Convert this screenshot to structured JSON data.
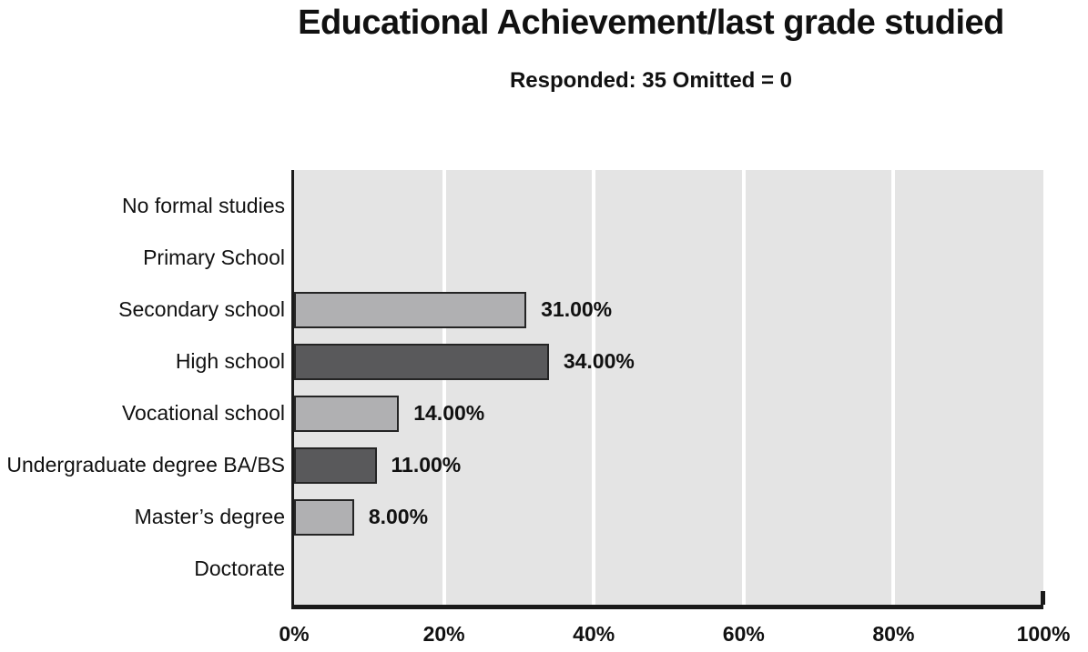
{
  "page": {
    "background": "#ffffff"
  },
  "header": {
    "title": "Educational Achievement/last grade studied",
    "subtitle": "Responded: 35 Omitted = 0"
  },
  "chart_data": {
    "type": "bar",
    "orientation": "horizontal",
    "title": "Educational Achievement/last grade studied",
    "subtitle": "Responded: 35 Omitted = 0",
    "responded": 35,
    "omitted": 0,
    "xlabel": "",
    "ylabel": "",
    "xlim": [
      0,
      100
    ],
    "x_ticks": [
      "0%",
      "20%",
      "40%",
      "60%",
      "80%",
      "100%"
    ],
    "grid": "vertical white gridlines every 20%",
    "legend": "none",
    "categories": [
      "No formal studies",
      "Primary School",
      "Secondary school",
      "High school",
      "Vocational school",
      "Undergraduate degree BA/BS",
      "Master’s degree",
      "Doctorate"
    ],
    "values": [
      0,
      0,
      31,
      34,
      14,
      11,
      8,
      0
    ],
    "items": [
      {
        "label": "No formal studies",
        "value": 0,
        "value_label": "",
        "shade": null
      },
      {
        "label": "Primary School",
        "value": 0,
        "value_label": "",
        "shade": null
      },
      {
        "label": "Secondary school",
        "value": 31,
        "value_label": "31.00%",
        "shade": "light"
      },
      {
        "label": "High school",
        "value": 34,
        "value_label": "34.00%",
        "shade": "dark"
      },
      {
        "label": "Vocational school",
        "value": 14,
        "value_label": "14.00%",
        "shade": "light"
      },
      {
        "label": "Undergraduate degree BA/BS",
        "value": 11,
        "value_label": "11.00%",
        "shade": "dark"
      },
      {
        "label": "Master’s degree",
        "value": 8,
        "value_label": "8.00%",
        "shade": "light"
      },
      {
        "label": "Doctorate",
        "value": 0,
        "value_label": "",
        "shade": null
      }
    ],
    "colors": {
      "bar_light": "#b0b0b2",
      "bar_dark": "#59595b",
      "bar_border": "#242424",
      "plot_background": "#e4e4e4",
      "axis": "#1a1a1a",
      "gridline": "#ffffff",
      "text": "#111111"
    }
  }
}
